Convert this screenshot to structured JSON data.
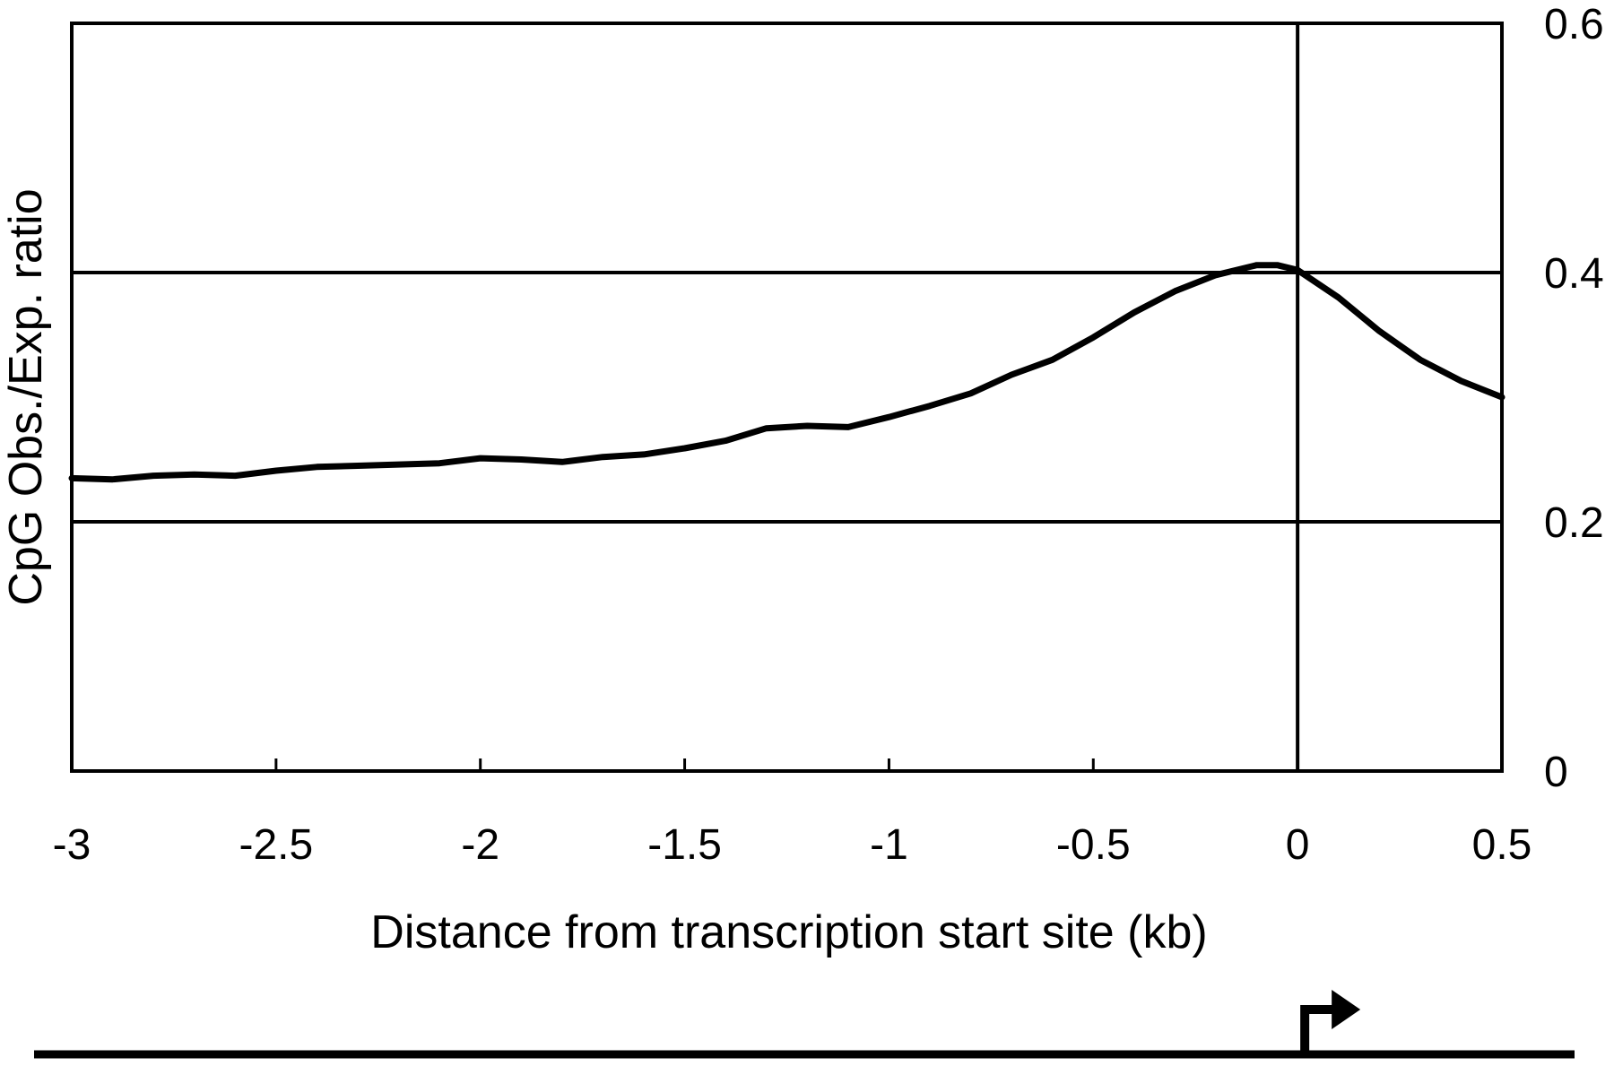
{
  "chart_data": {
    "type": "line",
    "xlabel": "Distance from transcription start site (kb)",
    "ylabel": "CpG Obs./Exp. ratio",
    "xlim": [
      -3,
      0.5
    ],
    "ylim": [
      0,
      0.6
    ],
    "x_ticks": [
      -3,
      -2.5,
      -2,
      -1.5,
      -1,
      -0.5,
      0,
      0.5
    ],
    "x_tick_labels": [
      "-3",
      "-2.5",
      "-2",
      "-1.5",
      "-1",
      "-0.5",
      "0",
      "0.5"
    ],
    "y_ticks": [
      0,
      0.2,
      0.4,
      0.6
    ],
    "y_tick_labels": [
      "0",
      "0.2",
      "0.4",
      "0.6"
    ],
    "y_axis_side": "right",
    "gridlines_y": [
      0.2,
      0.4
    ],
    "reference_line_x": 0,
    "series": [
      {
        "x": [
          -3.0,
          -2.9,
          -2.8,
          -2.7,
          -2.6,
          -2.5,
          -2.4,
          -2.3,
          -2.2,
          -2.1,
          -2.0,
          -1.9,
          -1.8,
          -1.7,
          -1.6,
          -1.5,
          -1.4,
          -1.3,
          -1.2,
          -1.1,
          -1.0,
          -0.9,
          -0.8,
          -0.7,
          -0.6,
          -0.5,
          -0.4,
          -0.3,
          -0.2,
          -0.1,
          -0.05,
          0.0,
          0.1,
          0.2,
          0.3,
          0.4,
          0.5
        ],
        "values": [
          0.235,
          0.234,
          0.237,
          0.238,
          0.237,
          0.241,
          0.244,
          0.245,
          0.246,
          0.247,
          0.251,
          0.25,
          0.248,
          0.252,
          0.254,
          0.259,
          0.265,
          0.275,
          0.277,
          0.276,
          0.284,
          0.293,
          0.303,
          0.318,
          0.33,
          0.348,
          0.368,
          0.385,
          0.398,
          0.406,
          0.406,
          0.402,
          0.38,
          0.353,
          0.33,
          0.313,
          0.3
        ]
      }
    ],
    "color": "#000000"
  },
  "diagram": {
    "element": "transcription-start-arrow",
    "position_kb": 0
  }
}
